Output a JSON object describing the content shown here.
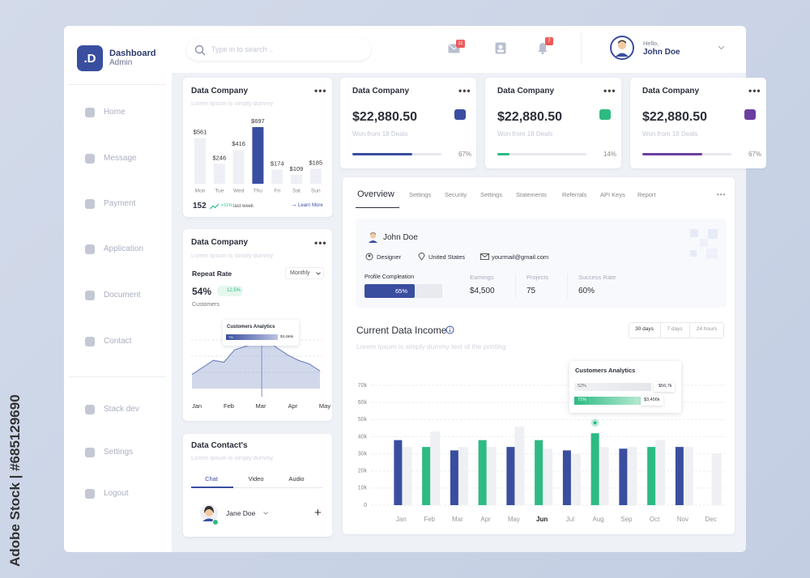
{
  "watermark": "Adobe Stock | #685129690",
  "sidebar": {
    "logo": ".D",
    "title": "Dashboard",
    "subtitle": "Admin",
    "menu": [
      "Home",
      "Message",
      "Payment",
      "Application",
      "Document",
      "Contact"
    ],
    "menu_bottom": [
      "Stack dev",
      "Settings",
      "Logout"
    ]
  },
  "topbar": {
    "search": "Type in to search ..",
    "message_count": "11",
    "notification_count": "7",
    "greeting": "Hello,",
    "user": "John Doe"
  },
  "sales_card": {
    "title": "Data Company",
    "subtitle": "Lorem Ipsum is simply dummy",
    "chart": {
      "type": "bar",
      "categories": [
        "Mon",
        "Tue",
        "Wed",
        "Thu",
        "Fri",
        "Sat",
        "Sun"
      ],
      "values": [
        561,
        246,
        416,
        697,
        174,
        109,
        185
      ],
      "value_labels": [
        "$561",
        "$246",
        "$416",
        "$697",
        "$174",
        "$109",
        "$185"
      ],
      "color": "#eef0f5",
      "highlight_color": "#3a4ea0",
      "highlight": 3
    },
    "total": "152",
    "change": "+11%",
    "period": "last week",
    "link": "Learn More"
  },
  "stat_cards": [
    {
      "title": "Data Company",
      "amount": "$22,880.50",
      "note": "Won from 18 Deals",
      "progress": {
        "value": 67,
        "label": "67%"
      },
      "color": "#3a4ea0"
    },
    {
      "title": "Data Company",
      "amount": "$22,880.50",
      "note": "Won from 18 Deals",
      "progress": {
        "value": 14,
        "label": "14%"
      },
      "color": "#2dbb83"
    },
    {
      "title": "Data Company",
      "amount": "$22,880.50",
      "note": "Won from 18 Deals",
      "progress": {
        "value": 67,
        "label": "67%"
      },
      "color": "#6b3fa0"
    }
  ],
  "repeat_card": {
    "title": "Data Company",
    "subtitle": "Lorem Ipsum is simply dummy",
    "label": "Repeat Rate",
    "period": "Monthly",
    "rate": "54%",
    "change": "12.5%",
    "caption": "Customers",
    "chart": {
      "type": "area",
      "categories": [
        "Jan",
        null,
        null,
        "Feb",
        null,
        null,
        "Mar",
        null,
        null,
        "Apr",
        null,
        null,
        "May"
      ],
      "values": [
        8,
        12,
        16,
        15,
        22,
        24,
        26,
        28,
        23,
        19,
        16,
        14,
        10
      ],
      "color": "#7d8fc6"
    },
    "tooltip": {
      "title": "Customers Analytics",
      "share": "7%",
      "amount": "$3,456k"
    }
  },
  "contact_card": {
    "title": "Data Contact's",
    "subtitle": "Lorem Ipsum is simply dummy",
    "tabs": [
      "Chat",
      "Video",
      "Audio"
    ],
    "contact": "Jane Doe"
  },
  "overview": {
    "tabs": [
      "Overview",
      "Settings",
      "Security",
      "Settings",
      "Statements",
      "Referrals",
      "API Keys",
      "Report"
    ],
    "profile": {
      "name": "John Doe",
      "role": "Designer",
      "country": "United States",
      "email": "yourmail@gmail.com",
      "completion_label": "Profile Compleation",
      "completion": {
        "value": 65,
        "label": "65%"
      },
      "stats": [
        {
          "label": "Earnings",
          "value": "$4,500"
        },
        {
          "label": "Projects",
          "value": "75"
        },
        {
          "label": "Success Rate",
          "value": "60%"
        }
      ]
    }
  },
  "income": {
    "title": "Current Data Income",
    "subtitle": "Lorem Ipsum is simply dummy text of the printing",
    "ranges": [
      "30 days",
      "7 days",
      "24 hours"
    ],
    "chart": {
      "type": "bar",
      "categories": [
        "Jan",
        "Feb",
        "Mar",
        "Apr",
        "May",
        "Jun",
        "Jul",
        "Aug",
        "Sep",
        "Oct",
        "Nov",
        "Dec"
      ],
      "ylim": [
        0,
        70000
      ],
      "yticks": [
        0,
        {
          "value": 10000,
          "label": "10k"
        },
        {
          "value": 20000,
          "label": "20k"
        },
        {
          "value": 30000,
          "label": "30k"
        },
        {
          "value": 40000,
          "label": "40k"
        },
        {
          "value": 50000,
          "label": "50k"
        },
        {
          "value": 60000,
          "label": "60k"
        },
        {
          "value": 70000,
          "label": "70k"
        }
      ],
      "grid": true,
      "highlight_category": 5,
      "series": [
        {
          "colors": [
            "#3a4ea0",
            "#2dbb83",
            "#3a4ea0",
            "#2dbb83",
            "#3a4ea0",
            "#2dbb83",
            "#3a4ea0",
            "#2dbb83",
            "#3a4ea0",
            "#2dbb83",
            "#3a4ea0",
            null
          ],
          "values": [
            38000,
            34000,
            32000,
            38000,
            34000,
            38000,
            32000,
            42000,
            33000,
            34000,
            34000,
            null
          ]
        },
        {
          "color": "#eff0f3",
          "values": [
            34000,
            43000,
            34000,
            34000,
            46000,
            33000,
            30000,
            34000,
            34000,
            38000,
            34000,
            30000
          ]
        }
      ]
    },
    "tooltip": {
      "title": "Customers Analytics",
      "rows": [
        {
          "share": "52%",
          "amount": "$56,7k"
        },
        {
          "share": "71%",
          "amount": "$3,456k"
        }
      ]
    }
  }
}
